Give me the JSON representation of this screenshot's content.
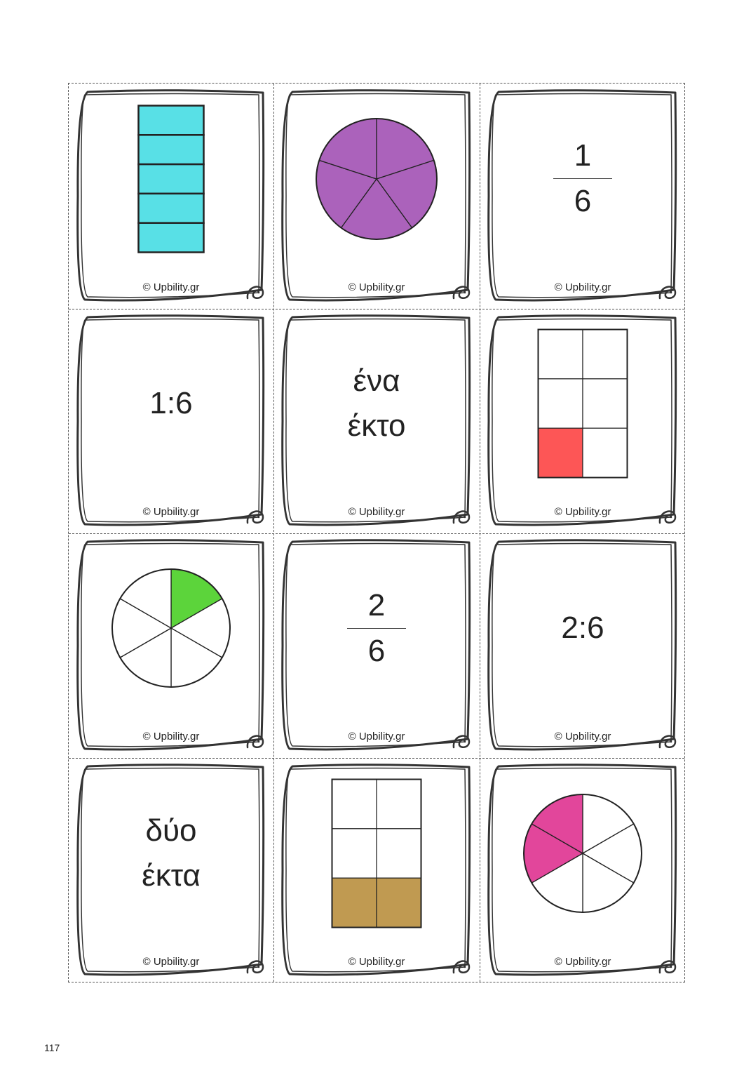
{
  "page_number": "117",
  "credit": "© Upbility.gr",
  "colors": {
    "cyan": "#58e0e6",
    "purple": "#ab62bb",
    "red": "#fd5656",
    "green": "#5cd43b",
    "brown": "#c09a51",
    "pink": "#e2469b"
  },
  "cards": [
    {
      "kind": "bar",
      "color": "cyan",
      "rows": 5,
      "cols": 1,
      "filled": 5
    },
    {
      "kind": "pie",
      "color": "purple",
      "slices": 5,
      "filled": 5
    },
    {
      "kind": "fraction",
      "numerator": "1",
      "denominator": "6"
    },
    {
      "kind": "ratio",
      "text": "1:6"
    },
    {
      "kind": "words",
      "line1": "ένα",
      "line2": "έκτο"
    },
    {
      "kind": "grid",
      "color": "red",
      "rows": 3,
      "cols": 2,
      "filled": 1
    },
    {
      "kind": "pie",
      "color": "green",
      "slices": 6,
      "filled": 1
    },
    {
      "kind": "fraction",
      "numerator": "2",
      "denominator": "6"
    },
    {
      "kind": "ratio",
      "text": "2:6"
    },
    {
      "kind": "words",
      "line1": "δύο",
      "line2": "έκτα"
    },
    {
      "kind": "grid",
      "color": "brown",
      "rows": 3,
      "cols": 2,
      "filled": 2
    },
    {
      "kind": "pie",
      "color": "pink",
      "slices": 6,
      "filled": 2
    }
  ]
}
